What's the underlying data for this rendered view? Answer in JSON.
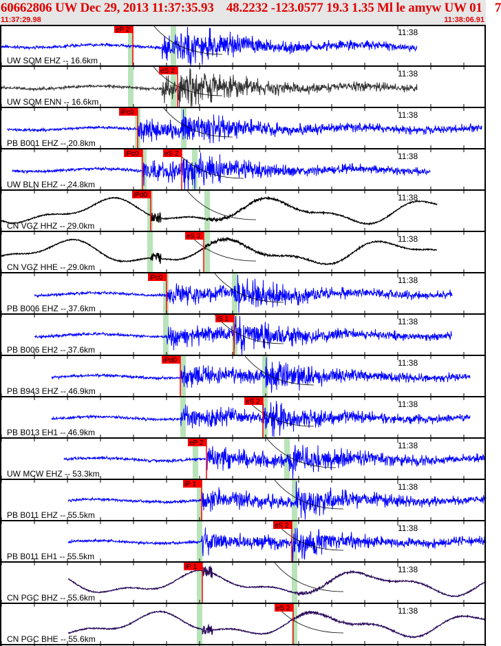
{
  "header": {
    "title": "60662806 UW Dec 29, 2013 11:37:35.93    48.2232 -123.0577 19.3 1.35 Ml le amyw UW 01    7",
    "start_time": "11:37:29.98",
    "end_time": "11:38:06.91"
  },
  "colors": {
    "pick": "#ff0000",
    "band": "#b9e3b9",
    "blue": "#0000ff",
    "black": "#000000",
    "gray": "#333333",
    "purple": "#2a0a5a"
  },
  "panels": [
    {
      "label": "UW SQM EHZ -- 16.6km",
      "time_label": "11:38",
      "pick": "eP 2",
      "color": "blue"
    },
    {
      "label": "UW SQM ENN -- 16.6km",
      "time_label": "11:38",
      "pick": "eS 2",
      "color": "gray"
    },
    {
      "label": "PB B001 EHZ -- 20.8km",
      "time_label": "11:38",
      "pick": "iPc0",
      "color": "blue"
    },
    {
      "label": "UW BLN EHZ -- 24.8km",
      "time_label": "11:38",
      "pick": "iPc0",
      "pick2": "eS 2",
      "color": "blue"
    },
    {
      "label": "CN VGZ HHZ -- 29.0km",
      "time_label": "11:38",
      "pick": "iPd0",
      "color": "black"
    },
    {
      "label": "CN VGZ HHE -- 29.0km",
      "time_label": "11:38",
      "pick": "eS 2",
      "color": "black"
    },
    {
      "label": "PB B006 EHZ -- 37.6km",
      "time_label": "11:38",
      "pick": "iPc0",
      "color": "blue"
    },
    {
      "label": "PB B006 EH2 -- 37.6km",
      "time_label": "11:38",
      "pick": "iS 1",
      "color": "blue"
    },
    {
      "label": "PB B943 EHZ -- 46.9km",
      "time_label": "11:38",
      "pick": "iPd0",
      "color": "blue"
    },
    {
      "label": "PB B013 EH1 -- 46.9km",
      "time_label": "11:38",
      "pick": "eS 2",
      "color": "blue"
    },
    {
      "label": "UW MCW EHZ -- 53.3km",
      "time_label": "11:38",
      "pick": "eP 2",
      "color": "blue"
    },
    {
      "label": "PB B011 EHZ -- 55.5km",
      "time_label": "11:38",
      "pick": "iP 1",
      "color": "blue"
    },
    {
      "label": "PB B011 EH1 -- 55.5km",
      "time_label": "11:38",
      "pick": "eS 2",
      "color": "blue"
    },
    {
      "label": "CN PGC BHZ -- 55.6km",
      "time_label": "11:38",
      "pick": "iP 1",
      "color": "purple"
    },
    {
      "label": "CN PGC BHE -- 55.6km",
      "time_label": "11:38",
      "pick": "eS 2",
      "color": "purple"
    }
  ]
}
